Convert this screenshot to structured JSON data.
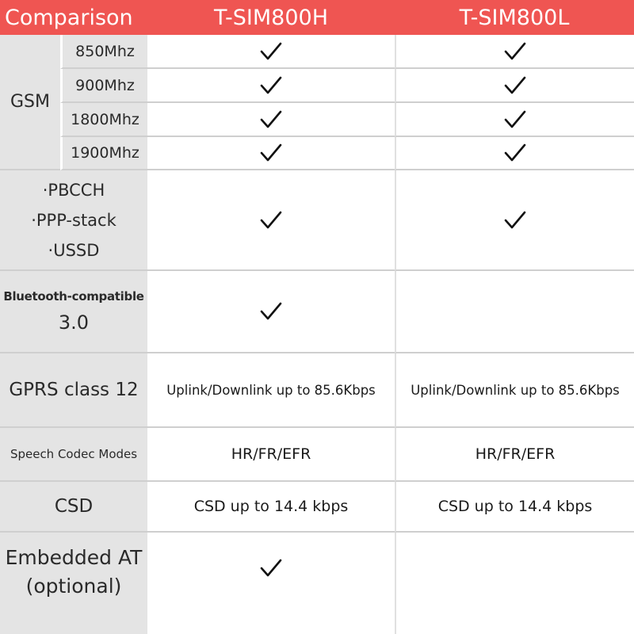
{
  "header": {
    "col0": "Comparison",
    "col1": "T-SIM800H",
    "col2": "T-SIM800L"
  },
  "gsm": {
    "label": "GSM",
    "bands": [
      {
        "label": "850Mhz",
        "h": true,
        "l": true
      },
      {
        "label": "900Mhz",
        "h": true,
        "l": true
      },
      {
        "label": "1800Mhz",
        "h": true,
        "l": true
      },
      {
        "label": "1900Mhz",
        "h": true,
        "l": true
      }
    ]
  },
  "protocols": {
    "lines": [
      "·PBCCH",
      "·PPP-stack",
      "·USSD"
    ],
    "h": true,
    "l": true
  },
  "bluetooth": {
    "label_small": "Bluetooth-compatible",
    "label_big": "3.0",
    "h": true,
    "l": false
  },
  "gprs": {
    "label": "GPRS class 12",
    "h": "Uplink/Downlink up to 85.6Kbps",
    "l": "Uplink/Downlink up to 85.6Kbps"
  },
  "codec": {
    "label": "Speech Codec Modes",
    "h": "HR/FR/EFR",
    "l": "HR/FR/EFR"
  },
  "csd": {
    "label": "CSD",
    "h": "CSD up to 14.4 kbps",
    "l": "CSD up to 14.4 kbps"
  },
  "embedded": {
    "label_line1": "Embedded AT",
    "label_line2": "(optional)",
    "h": true,
    "l": false
  },
  "icons": {
    "check": "check-icon"
  },
  "colors": {
    "header_bg": "#ef5552",
    "label_bg": "#e4e4e4"
  }
}
